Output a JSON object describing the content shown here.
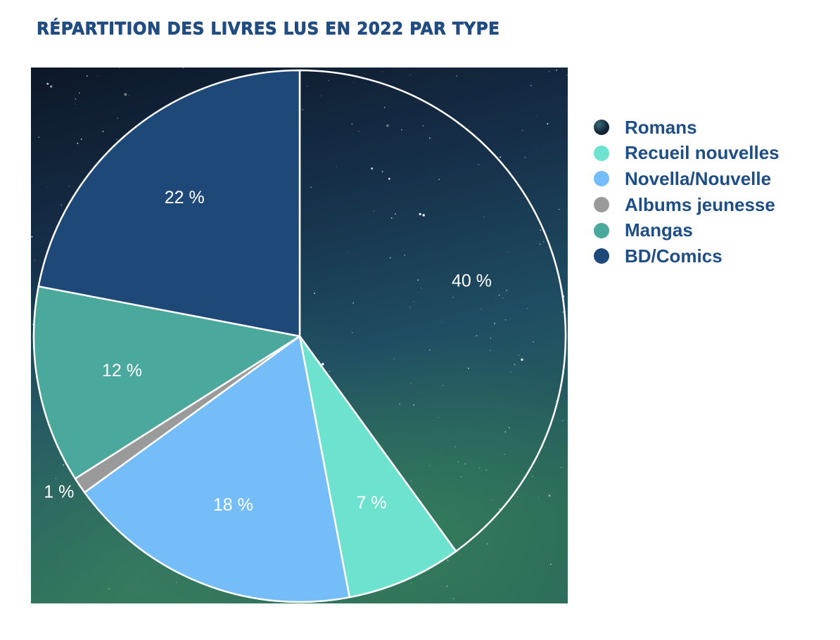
{
  "chart_data": {
    "type": "pie",
    "title": "Répartition des livres lus en 2022 par type",
    "labels": [
      "Romans",
      "Recueil nouvelles",
      "Novella/Nouvelle",
      "Albums jeunesse",
      "Mangas",
      "BD/Comics"
    ],
    "values": [
      40,
      7,
      18,
      1,
      12,
      22
    ],
    "value_labels": [
      "40 %",
      "7 %",
      "18 %",
      "1 %",
      "12 %",
      "22 %"
    ],
    "colors": [
      "#1c3550",
      "#6de3cf",
      "#74bdf8",
      "#9a9a9a",
      "#4ba89c",
      "#1e4878"
    ],
    "start_angle": "12 o'clock",
    "direction": "clockwise",
    "legend_position": "right",
    "background": "starry night sky"
  }
}
